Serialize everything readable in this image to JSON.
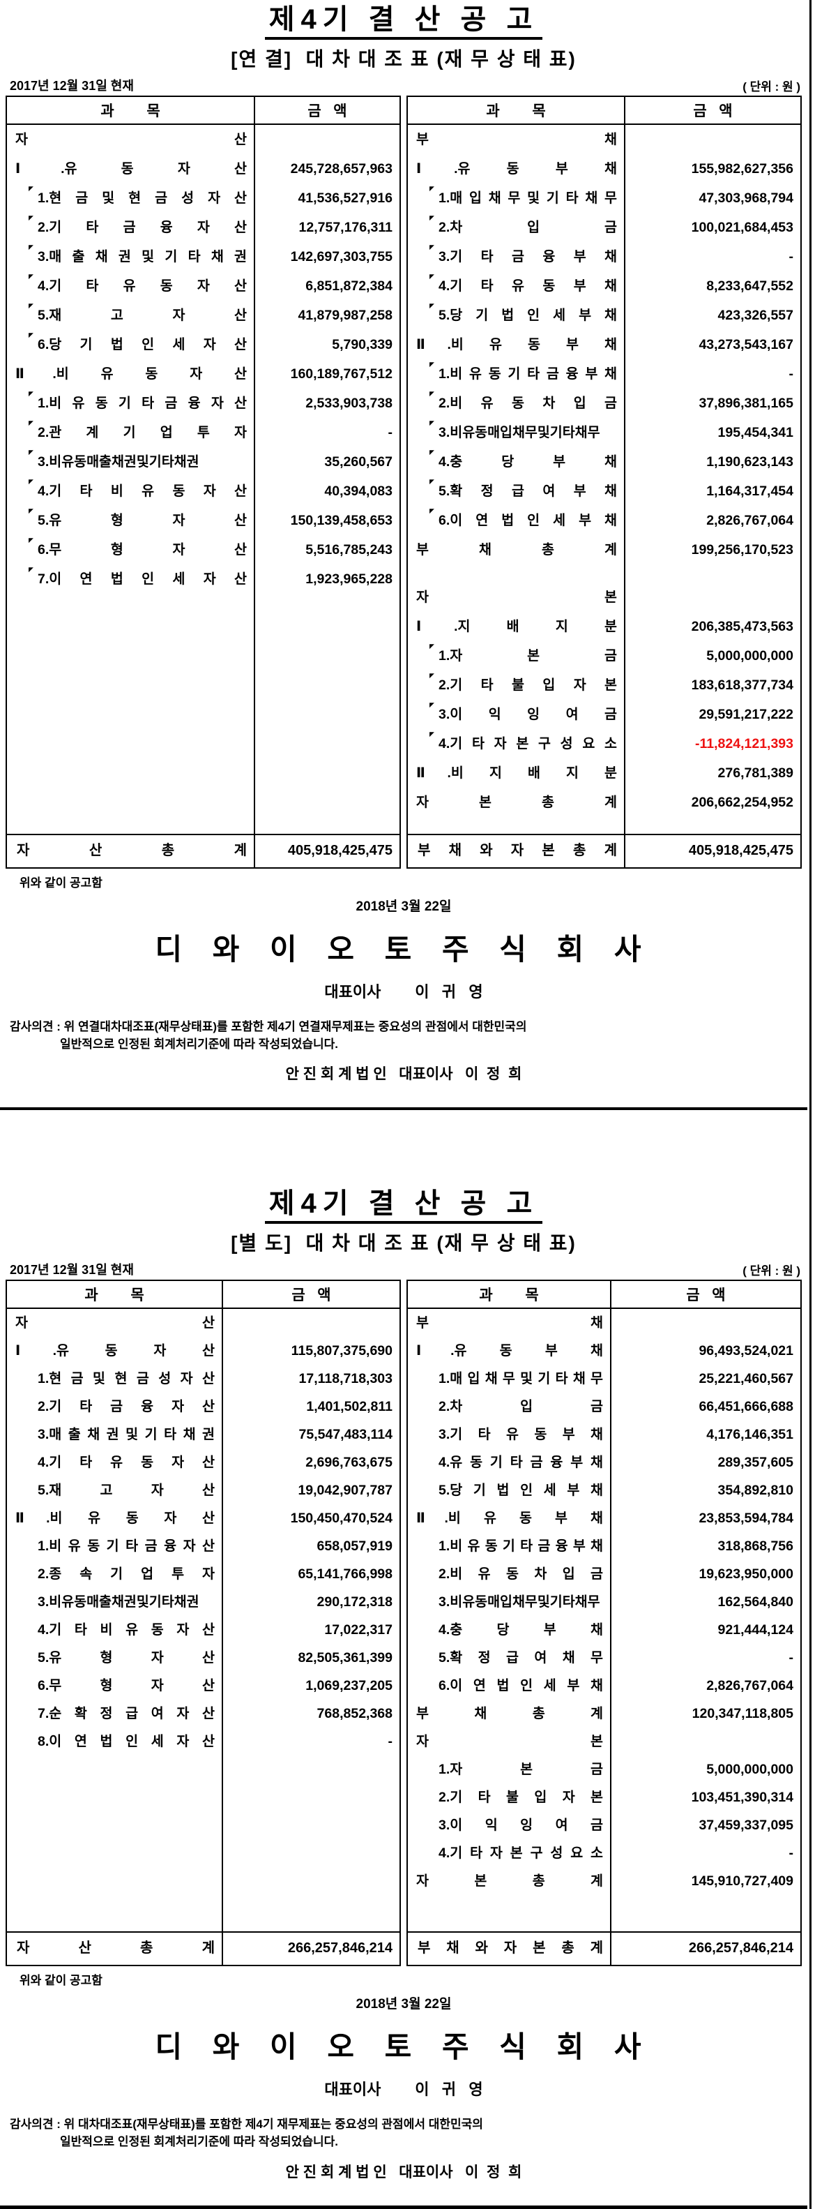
{
  "colors": {
    "red": "#ee1111"
  },
  "documents": [
    {
      "title": "제4기 결 산 공 고",
      "subtitle": "[연 결]  대 차 대 조 표 (재 무 상 태 표)",
      "as_of": "2017년 12월 31일  현재",
      "unit": "( 단위 : 원 )",
      "col_account": "과        목",
      "col_amount": "금   액",
      "left": {
        "rows": [
          {
            "l": "자 산",
            "v": "",
            "c": "split"
          },
          {
            "l": "Ⅰ.유 동 자 산",
            "v": "245,728,657,963",
            "c": "major"
          },
          {
            "l": "1.현 금 및 현 금 성 자 산",
            "v": "41,536,527,916",
            "c": "item mark"
          },
          {
            "l": "2.기 타 금 융 자 산",
            "v": "12,757,176,311",
            "c": "item mark"
          },
          {
            "l": "3.매 출 채 권 및 기 타 채 권",
            "v": "142,697,303,755",
            "c": "item mark"
          },
          {
            "l": "4.기 타 유 동 자 산",
            "v": "6,851,872,384",
            "c": "item mark"
          },
          {
            "l": "5.재 고 자 산",
            "v": "41,879,987,258",
            "c": "item mark"
          },
          {
            "l": "6.당 기 법 인 세 자 산",
            "v": "5,790,339",
            "c": "item mark"
          },
          {
            "l": "Ⅱ.비 유 동 자 산",
            "v": "160,189,767,512",
            "c": "major"
          },
          {
            "l": "1.비 유 동 기 타 금 융 자 산",
            "v": "2,533,903,738",
            "c": "item mark"
          },
          {
            "l": "2.관 계 기 업 투 자",
            "v": "-",
            "c": "item mark"
          },
          {
            "l": "3.비유동매출채권및기타채권",
            "v": "35,260,567",
            "c": "item mark"
          },
          {
            "l": "4.기 타 비 유 동 자 산",
            "v": "40,394,083",
            "c": "item mark"
          },
          {
            "l": "5.유 형 자 산",
            "v": "150,139,458,653",
            "c": "item mark"
          },
          {
            "l": "6.무 형 자 산",
            "v": "5,516,785,243",
            "c": "item mark"
          },
          {
            "l": "7.이 연 법 인 세 자 산",
            "v": "1,923,965,228",
            "c": "item mark"
          }
        ],
        "total_label": "자 산 총 계",
        "total_value": "405,918,425,475"
      },
      "right": {
        "rows": [
          {
            "l": "부 채",
            "v": "",
            "c": "split"
          },
          {
            "l": "Ⅰ.유 동 부 채",
            "v": "155,982,627,356",
            "c": "major"
          },
          {
            "l": "1.매 입 채 무 및 기 타 채 무",
            "v": "47,303,968,794",
            "c": "item mark"
          },
          {
            "l": "2.차 입 금",
            "v": "100,021,684,453",
            "c": "item mark"
          },
          {
            "l": "3.기 타 금 융 부 채",
            "v": "-",
            "c": "item mark"
          },
          {
            "l": "4.기 타 유 동 부 채",
            "v": "8,233,647,552",
            "c": "item mark"
          },
          {
            "l": "5.당 기 법 인 세 부 채",
            "v": "423,326,557",
            "c": "item mark"
          },
          {
            "l": "Ⅱ.비 유 동 부 채",
            "v": "43,273,543,167",
            "c": "major"
          },
          {
            "l": "1.비 유 동 기 타 금 융 부 채",
            "v": "-",
            "c": "item mark"
          },
          {
            "l": "2.비 유 동 차 입 금",
            "v": "37,896,381,165",
            "c": "item mark"
          },
          {
            "l": "3.비유동매입채무및기타채무",
            "v": "195,454,341",
            "c": "item mark"
          },
          {
            "l": "4.충 당 부 채",
            "v": "1,190,623,143",
            "c": "item mark"
          },
          {
            "l": "5.확 정 급 여 부 채",
            "v": "1,164,317,454",
            "c": "item mark"
          },
          {
            "l": "6.이 연 법 인 세 부 채",
            "v": "2,826,767,064",
            "c": "item mark"
          },
          {
            "l": "부 채 총 계",
            "v": "199,256,170,523",
            "c": "subtotal"
          },
          {
            "l": "",
            "v": "",
            "c": "spacer"
          },
          {
            "l": "자 본",
            "v": "",
            "c": "split"
          },
          {
            "l": "Ⅰ.지 배 지 분",
            "v": "206,385,473,563",
            "c": "major"
          },
          {
            "l": "1.자 본 금",
            "v": "5,000,000,000",
            "c": "item mark"
          },
          {
            "l": "2.기 타 불 입 자 본",
            "v": "183,618,377,734",
            "c": "item mark"
          },
          {
            "l": "3.이 익 잉 여 금",
            "v": "29,591,217,222",
            "c": "item mark"
          },
          {
            "l": "4.기 타 자 본 구 성 요 소",
            "v": "-11,824,121,393",
            "c": "item mark neg"
          },
          {
            "l": "Ⅱ.비 지 배 지 분",
            "v": "276,781,389",
            "c": "major"
          },
          {
            "l": "자 본 총 계",
            "v": "206,662,254,952",
            "c": "subtotal"
          }
        ],
        "total_label": "부 채 와 자 본 총 계",
        "total_value": "405,918,425,475"
      },
      "footer": {
        "notice": "위와 같이 공고함",
        "date": "2018년 3월 22일",
        "company": "디 와 이 오 토 주 식 회 사",
        "ceo": "대표이사        이   귀   영",
        "opinion_line1": "감사의견 : 위 연결대차대조표(재무상태표)를 포함한 제4기 연결재무제표는 중요성의 관점에서 대한민국의",
        "opinion_line2": "일반적으로 인정된 회계처리기준에 따라 작성되었습니다.",
        "auditor": "안 진 회 계 법 인   대표이사   이  정  희"
      }
    },
    {
      "title": "제4기 결 산 공 고",
      "subtitle": "[별 도]  대 차 대 조 표 (재 무 상 태 표)",
      "as_of": "2017년 12월 31일  현재",
      "unit": "( 단위 : 원 )",
      "col_account": "과        목",
      "col_amount": "금   액",
      "left": {
        "rows": [
          {
            "l": "자 산",
            "v": "",
            "c": "split"
          },
          {
            "l": "Ⅰ.유 동 자 산",
            "v": "115,807,375,690",
            "c": "major"
          },
          {
            "l": "1.현 금 및 현 금 성 자 산",
            "v": "17,118,718,303",
            "c": "item"
          },
          {
            "l": "2.기 타 금 융 자 산",
            "v": "1,401,502,811",
            "c": "item"
          },
          {
            "l": "3.매 출 채 권 및 기 타 채 권",
            "v": "75,547,483,114",
            "c": "item"
          },
          {
            "l": "4.기 타 유 동 자 산",
            "v": "2,696,763,675",
            "c": "item"
          },
          {
            "l": "5.재 고 자 산",
            "v": "19,042,907,787",
            "c": "item"
          },
          {
            "l": "Ⅱ.비 유 동 자 산",
            "v": "150,450,470,524",
            "c": "major"
          },
          {
            "l": "1.비 유 동 기 타 금 융 자 산",
            "v": "658,057,919",
            "c": "item"
          },
          {
            "l": "2.종 속 기 업 투 자",
            "v": "65,141,766,998",
            "c": "item"
          },
          {
            "l": "3.비유동매출채권및기타채권",
            "v": "290,172,318",
            "c": "item"
          },
          {
            "l": "4.기 타 비 유 동 자 산",
            "v": "17,022,317",
            "c": "item"
          },
          {
            "l": "5.유 형 자 산",
            "v": "82,505,361,399",
            "c": "item"
          },
          {
            "l": "6.무 형 자 산",
            "v": "1,069,237,205",
            "c": "item"
          },
          {
            "l": "7.순 확 정 급 여 자 산",
            "v": "768,852,368",
            "c": "item"
          },
          {
            "l": "8.이 연 법 인 세 자 산",
            "v": "-",
            "c": "item"
          }
        ],
        "total_label": "자 산 총 계",
        "total_value": "266,257,846,214"
      },
      "right": {
        "rows": [
          {
            "l": "부 채",
            "v": "",
            "c": "split"
          },
          {
            "l": "Ⅰ.유 동 부 채",
            "v": "96,493,524,021",
            "c": "major"
          },
          {
            "l": "1.매 입 채 무 및 기 타 채 무",
            "v": "25,221,460,567",
            "c": "item"
          },
          {
            "l": "2.차 입 금",
            "v": "66,451,666,688",
            "c": "item"
          },
          {
            "l": "3.기 타 유 동 부 채",
            "v": "4,176,146,351",
            "c": "item"
          },
          {
            "l": "4.유 동 기 타 금 융 부 채",
            "v": "289,357,605",
            "c": "item"
          },
          {
            "l": "5.당 기 법 인 세 부 채",
            "v": "354,892,810",
            "c": "item"
          },
          {
            "l": "Ⅱ.비 유 동 부 채",
            "v": "23,853,594,784",
            "c": "major"
          },
          {
            "l": "1.비 유 동 기 타 금 융 부 채",
            "v": "318,868,756",
            "c": "item"
          },
          {
            "l": "2.비 유 동 차 입 금",
            "v": "19,623,950,000",
            "c": "item"
          },
          {
            "l": "3.비유동매입채무및기타채무",
            "v": "162,564,840",
            "c": "item"
          },
          {
            "l": "4.충 당 부 채",
            "v": "921,444,124",
            "c": "item"
          },
          {
            "l": "5.확 정 급 여 채 무",
            "v": "-",
            "c": "item"
          },
          {
            "l": "6.이 연 법 인 세 부 채",
            "v": "2,826,767,064",
            "c": "item"
          },
          {
            "l": "부 채 총 계",
            "v": "120,347,118,805",
            "c": "subtotal"
          },
          {
            "l": "자 본",
            "v": "",
            "c": "split"
          },
          {
            "l": "1.자 본 금",
            "v": "5,000,000,000",
            "c": "item"
          },
          {
            "l": "2.기 타 불 입 자 본",
            "v": "103,451,390,314",
            "c": "item"
          },
          {
            "l": "3.이 익 잉 여 금",
            "v": "37,459,337,095",
            "c": "item"
          },
          {
            "l": "4.기 타 자 본 구 성 요 소",
            "v": "-",
            "c": "item"
          },
          {
            "l": "자 본 총 계",
            "v": "145,910,727,409",
            "c": "subtotal"
          }
        ],
        "total_label": "부 채 와 자 본 총 계",
        "total_value": "266,257,846,214"
      },
      "footer": {
        "notice": "위와 같이 공고함",
        "date": "2018년 3월 22일",
        "company": "디 와 이 오 토 주 식 회 사",
        "ceo": "대표이사        이   귀   영",
        "opinion_line1": "감사의견 : 위 대차대조표(재무상태표)를 포함한 제4기 재무제표는 중요성의 관점에서 대한민국의",
        "opinion_line2": "일반적으로 인정된 회계처리기준에 따라 작성되었습니다.",
        "auditor": "안 진 회 계 법 인   대표이사   이  정  희"
      }
    }
  ]
}
